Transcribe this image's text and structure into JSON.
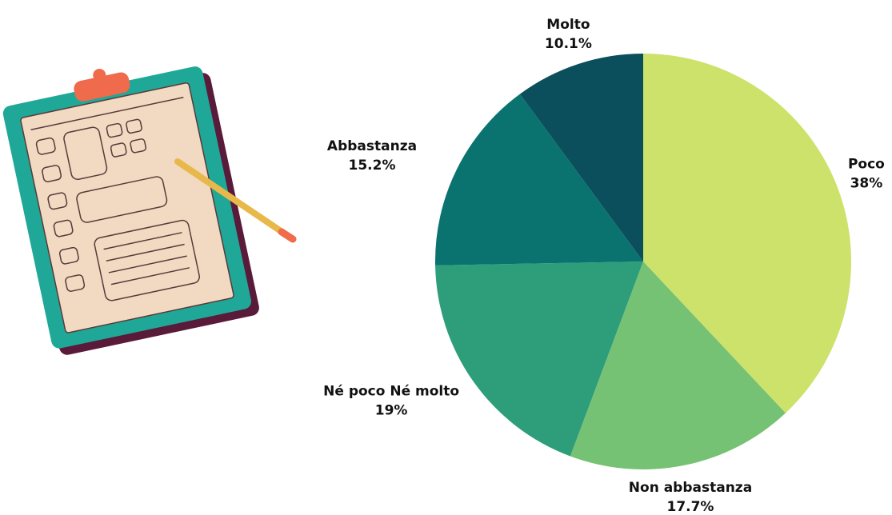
{
  "chart_data": {
    "type": "pie",
    "categories": [
      "Poco",
      "Non abbastanza",
      "Né poco Né molto",
      "Abbastanza",
      "Molto"
    ],
    "values": [
      38,
      17.7,
      19,
      15.2,
      10.1
    ],
    "value_labels": [
      "38%",
      "17.7%",
      "19%",
      "15.2%",
      "10.1%"
    ],
    "colors": [
      "#cde26a",
      "#76c275",
      "#2e9e7a",
      "#0a7370",
      "#0b4f5c"
    ]
  }
}
